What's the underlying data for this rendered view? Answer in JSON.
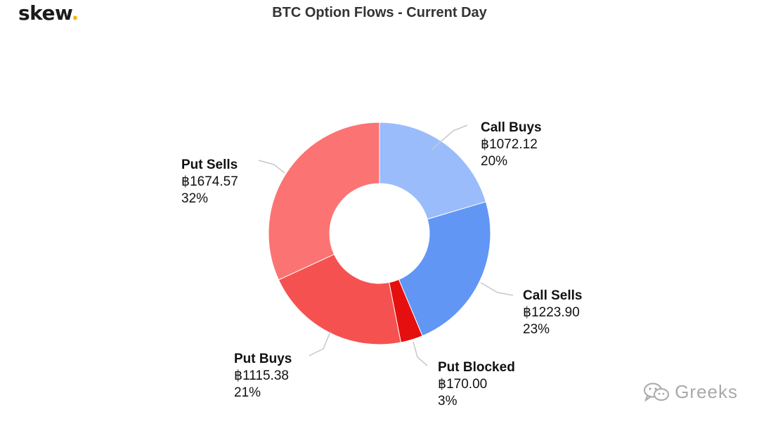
{
  "brand": {
    "name": "skew",
    "dot": "."
  },
  "watermark": {
    "text": "Greeks",
    "icon": "wechat-icon"
  },
  "chart_data": {
    "type": "pie",
    "donut": true,
    "title": "BTC Option Flows - Current Day",
    "legend": "none",
    "slices": [
      {
        "name": "Call Buys",
        "value": 1072.12,
        "value_label": "฿1072.12",
        "percent_label": "20%",
        "color": "#9bbcfb"
      },
      {
        "name": "Call Sells",
        "value": 1223.9,
        "value_label": "฿1223.90",
        "percent_label": "23%",
        "color": "#6196f4"
      },
      {
        "name": "Put Blocked",
        "value": 170.0,
        "value_label": "฿170.00",
        "percent_label": "3%",
        "color": "#e60f0f"
      },
      {
        "name": "Put Buys",
        "value": 1115.38,
        "value_label": "฿1115.38",
        "percent_label": "21%",
        "color": "#f65151"
      },
      {
        "name": "Put Sells",
        "value": 1674.57,
        "value_label": "฿1674.57",
        "percent_label": "32%",
        "color": "#fc7373"
      }
    ]
  }
}
